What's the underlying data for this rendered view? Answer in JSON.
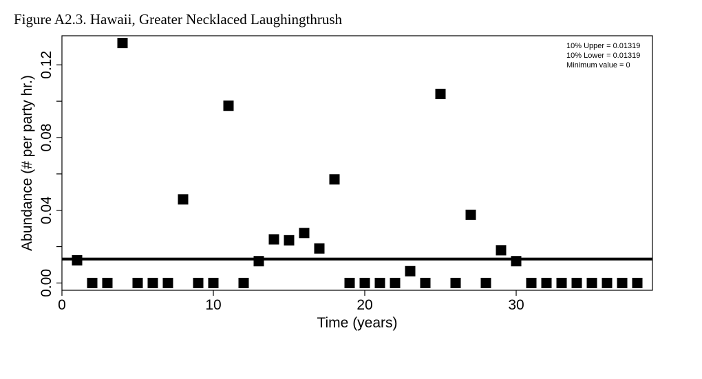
{
  "figure_title": "Figure A2.3. Hawaii, Greater Necklaced Laughingthrush",
  "legend": {
    "placement": "top-right",
    "lines": [
      "10% Upper = 0.01319",
      "10% Lower = 0.01319",
      "Minimum value = 0"
    ]
  },
  "chart_data": {
    "type": "scatter",
    "xlabel": "Time (years)",
    "ylabel": "Abundance (# per party hr.)",
    "xlim": [
      0,
      39
    ],
    "ylim": [
      -0.004,
      0.136
    ],
    "x_ticks": [
      0,
      10,
      20,
      30
    ],
    "y_ticks": [
      0,
      0.04,
      0.08,
      0.12
    ],
    "y_minor_ticks": [
      0.02,
      0.06,
      0.1
    ],
    "x_tick_labels": [
      "0",
      "10",
      "20",
      "30"
    ],
    "y_tick_labels": [
      "0.00",
      "0.04",
      "0.08",
      "0.12"
    ],
    "grid": false,
    "marker": "square",
    "marker_color": "#000000",
    "hline": {
      "y": 0.01319
    },
    "x": [
      1,
      2,
      3,
      4,
      5,
      6,
      7,
      8,
      9,
      10,
      11,
      12,
      13,
      14,
      15,
      16,
      17,
      18,
      19,
      20,
      21,
      22,
      23,
      24,
      25,
      26,
      27,
      28,
      29,
      30,
      31,
      32,
      33,
      34,
      35,
      36,
      37,
      38
    ],
    "y": [
      0.0125,
      0,
      0,
      0.132,
      0,
      0,
      0,
      0.046,
      0,
      0,
      0.0975,
      0,
      0.012,
      0.024,
      0.0235,
      0.0275,
      0.019,
      0.057,
      0,
      0,
      0,
      0,
      0.0065,
      0,
      0.104,
      0,
      0.0375,
      0,
      0.018,
      0.012,
      0,
      0,
      0,
      0,
      0,
      0,
      0,
      0
    ]
  }
}
